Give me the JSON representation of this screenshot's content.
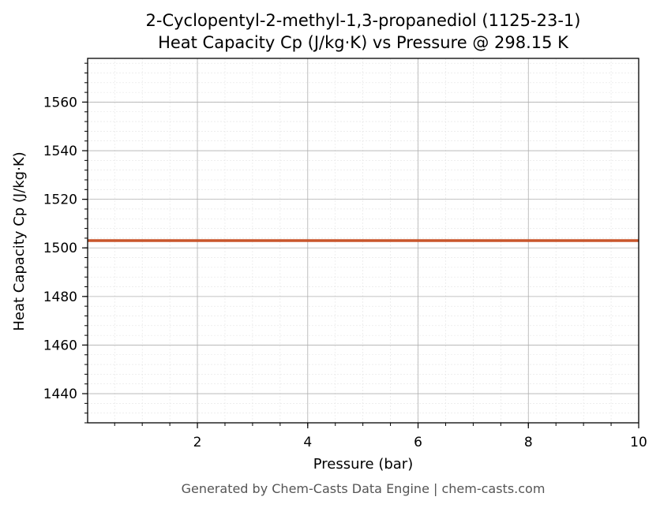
{
  "chart_data": {
    "type": "line",
    "title": "2-Cyclopentyl-2-methyl-1,3-propanediol (1125-23-1)",
    "subtitle": "Heat Capacity Cp (J/kg·K) vs Pressure @ 298.15 K",
    "xlabel": "Pressure (bar)",
    "ylabel": "Heat Capacity Cp (J/kg·K)",
    "xlim": [
      0.01,
      10
    ],
    "ylim": [
      1428,
      1578
    ],
    "x_ticks": [
      2,
      4,
      6,
      8,
      10
    ],
    "y_ticks": [
      1440,
      1460,
      1480,
      1500,
      1520,
      1540,
      1560
    ],
    "x_minor_step": 0.5,
    "y_minor_step": 4,
    "grid": true,
    "series": [
      {
        "color": "#c8552b",
        "x": [
          0.01,
          10
        ],
        "y": [
          1503,
          1503
        ]
      }
    ]
  },
  "footer": "Generated by Chem-Casts Data Engine | chem-casts.com"
}
